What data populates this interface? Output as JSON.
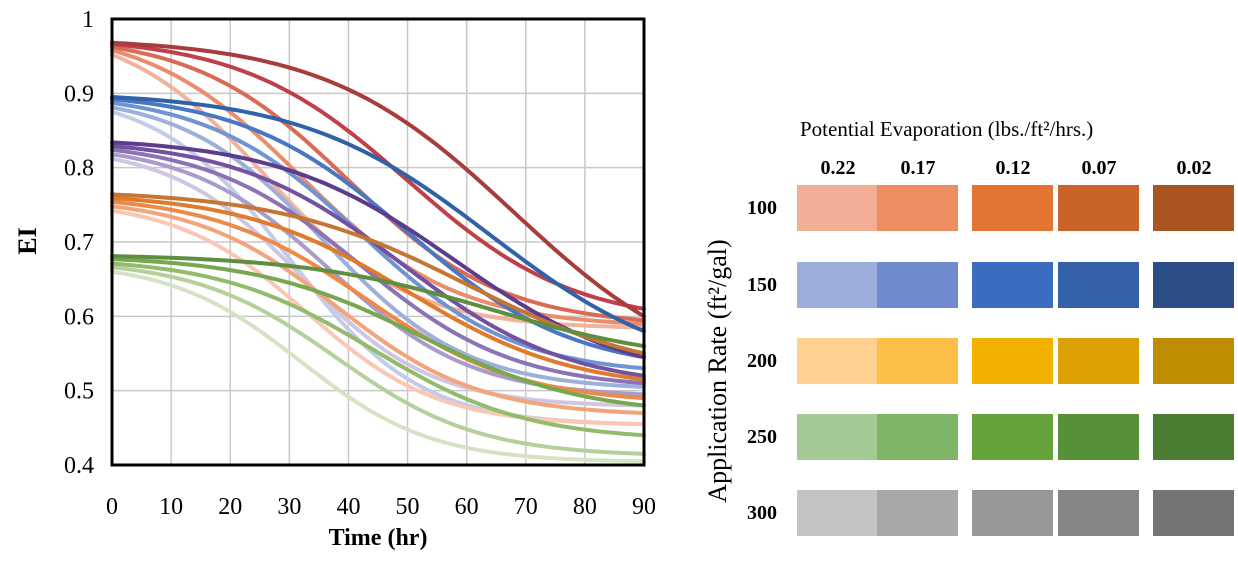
{
  "chart_data": {
    "type": "line",
    "xlabel": "Time (hr)",
    "ylabel": "EI",
    "xlim": [
      0,
      90
    ],
    "ylim": [
      0.4,
      1
    ],
    "xticks": [
      "0",
      "10",
      "20",
      "30",
      "40",
      "50",
      "60",
      "70",
      "80",
      "90"
    ],
    "yticks": [
      "0.4",
      "0.5",
      "0.6",
      "0.7",
      "0.8",
      "0.9",
      "1"
    ],
    "grid": true,
    "legend_placement": "right",
    "series": [
      {
        "rate": "100",
        "pe": "0.22",
        "color": "#F2B29C",
        "start": 0.952,
        "end": 0.585,
        "mid": 26,
        "width": 12
      },
      {
        "rate": "100",
        "pe": "0.17",
        "color": "#E98D6C",
        "start": 0.958,
        "end": 0.59,
        "mid": 32,
        "width": 13
      },
      {
        "rate": "100",
        "pe": "0.12",
        "color": "#D96A55",
        "start": 0.962,
        "end": 0.595,
        "mid": 40,
        "width": 13
      },
      {
        "rate": "100",
        "pe": "0.07",
        "color": "#C0404A",
        "start": 0.966,
        "end": 0.61,
        "mid": 50,
        "width": 14
      },
      {
        "rate": "100",
        "pe": "0.02",
        "color": "#A73C3A",
        "start": 0.968,
        "end": 0.6,
        "mid": 68,
        "width": 16
      },
      {
        "rate": "150",
        "pe": "0.22",
        "color": "#C3CCE6",
        "start": 0.875,
        "end": 0.455,
        "mid": 30,
        "width": 11
      },
      {
        "rate": "150",
        "pe": "0.17",
        "color": "#9DB0DB",
        "start": 0.881,
        "end": 0.505,
        "mid": 36,
        "width": 12
      },
      {
        "rate": "150",
        "pe": "0.12",
        "color": "#6F93D3",
        "start": 0.887,
        "end": 0.53,
        "mid": 42,
        "width": 13
      },
      {
        "rate": "150",
        "pe": "0.07",
        "color": "#4A77C2",
        "start": 0.892,
        "end": 0.545,
        "mid": 50,
        "width": 14
      },
      {
        "rate": "150",
        "pe": "0.02",
        "color": "#2F62A6",
        "start": 0.895,
        "end": 0.58,
        "mid": 64,
        "width": 16
      },
      {
        "rate": "200",
        "pe": "0.22",
        "color": "#CFC6E1",
        "start": 0.812,
        "end": 0.48,
        "mid": 32,
        "width": 11
      },
      {
        "rate": "200",
        "pe": "0.17",
        "color": "#A99BCB",
        "start": 0.818,
        "end": 0.495,
        "mid": 37,
        "width": 12
      },
      {
        "rate": "200",
        "pe": "0.12",
        "color": "#8A73B7",
        "start": 0.824,
        "end": 0.51,
        "mid": 42,
        "width": 13
      },
      {
        "rate": "200",
        "pe": "0.07",
        "color": "#72529F",
        "start": 0.829,
        "end": 0.52,
        "mid": 49,
        "width": 14
      },
      {
        "rate": "200",
        "pe": "0.02",
        "color": "#5C3C8C",
        "start": 0.834,
        "end": 0.545,
        "mid": 58,
        "width": 15
      },
      {
        "rate": "250",
        "pe": "0.22",
        "color": "#F9C7B4",
        "start": 0.742,
        "end": 0.455,
        "mid": 33,
        "width": 11
      },
      {
        "rate": "250",
        "pe": "0.17",
        "color": "#F3A47A",
        "start": 0.748,
        "end": 0.47,
        "mid": 38,
        "width": 12
      },
      {
        "rate": "250",
        "pe": "0.12",
        "color": "#EE8A48",
        "start": 0.754,
        "end": 0.49,
        "mid": 43,
        "width": 13
      },
      {
        "rate": "250",
        "pe": "0.07",
        "color": "#E07A2C",
        "start": 0.759,
        "end": 0.515,
        "mid": 50,
        "width": 14
      },
      {
        "rate": "250",
        "pe": "0.02",
        "color": "#C47632",
        "start": 0.764,
        "end": 0.55,
        "mid": 60,
        "width": 16
      },
      {
        "rate": "300",
        "pe": "0.22",
        "color": "#D5E3C4",
        "start": 0.66,
        "end": 0.405,
        "mid": 32,
        "width": 11
      },
      {
        "rate": "300",
        "pe": "0.17",
        "color": "#B6D09C",
        "start": 0.666,
        "end": 0.415,
        "mid": 38,
        "width": 12
      },
      {
        "rate": "300",
        "pe": "0.12",
        "color": "#93BB6C",
        "start": 0.671,
        "end": 0.44,
        "mid": 44,
        "width": 13
      },
      {
        "rate": "300",
        "pe": "0.07",
        "color": "#77A84F",
        "start": 0.677,
        "end": 0.48,
        "mid": 52,
        "width": 14
      },
      {
        "rate": "300",
        "pe": "0.02",
        "color": "#5E8E3F",
        "start": 0.681,
        "end": 0.56,
        "mid": 64,
        "width": 16
      }
    ]
  },
  "legend": {
    "title": "Potential Evaporation (lbs./ft²/hrs.)",
    "columns": [
      "0.22",
      "0.17",
      "0.12",
      "0.07",
      "0.02"
    ],
    "row_axis_label": "Application Rate (ft²/gal)",
    "rows": [
      {
        "label": "100",
        "colors": [
          "#F2AE95",
          "#EE8D62",
          "#E27531",
          "#C96328",
          "#AA5420"
        ]
      },
      {
        "label": "150",
        "colors": [
          "#9EAEDA",
          "#6F8ACE",
          "#3C6CC0",
          "#3561A8",
          "#2B4E88"
        ]
      },
      {
        "label": "200",
        "colors": [
          "#FFD08E",
          "#FDBF47",
          "#F2B100",
          "#DBA000",
          "#BE8C00"
        ]
      },
      {
        "label": "250",
        "colors": [
          "#A3C994",
          "#7FB567",
          "#63A33A",
          "#56913A",
          "#4A7D31"
        ]
      },
      {
        "label": "300",
        "colors": [
          "#C4C4C4",
          "#A8A8A8",
          "#989898",
          "#868686",
          "#747474"
        ]
      }
    ]
  }
}
